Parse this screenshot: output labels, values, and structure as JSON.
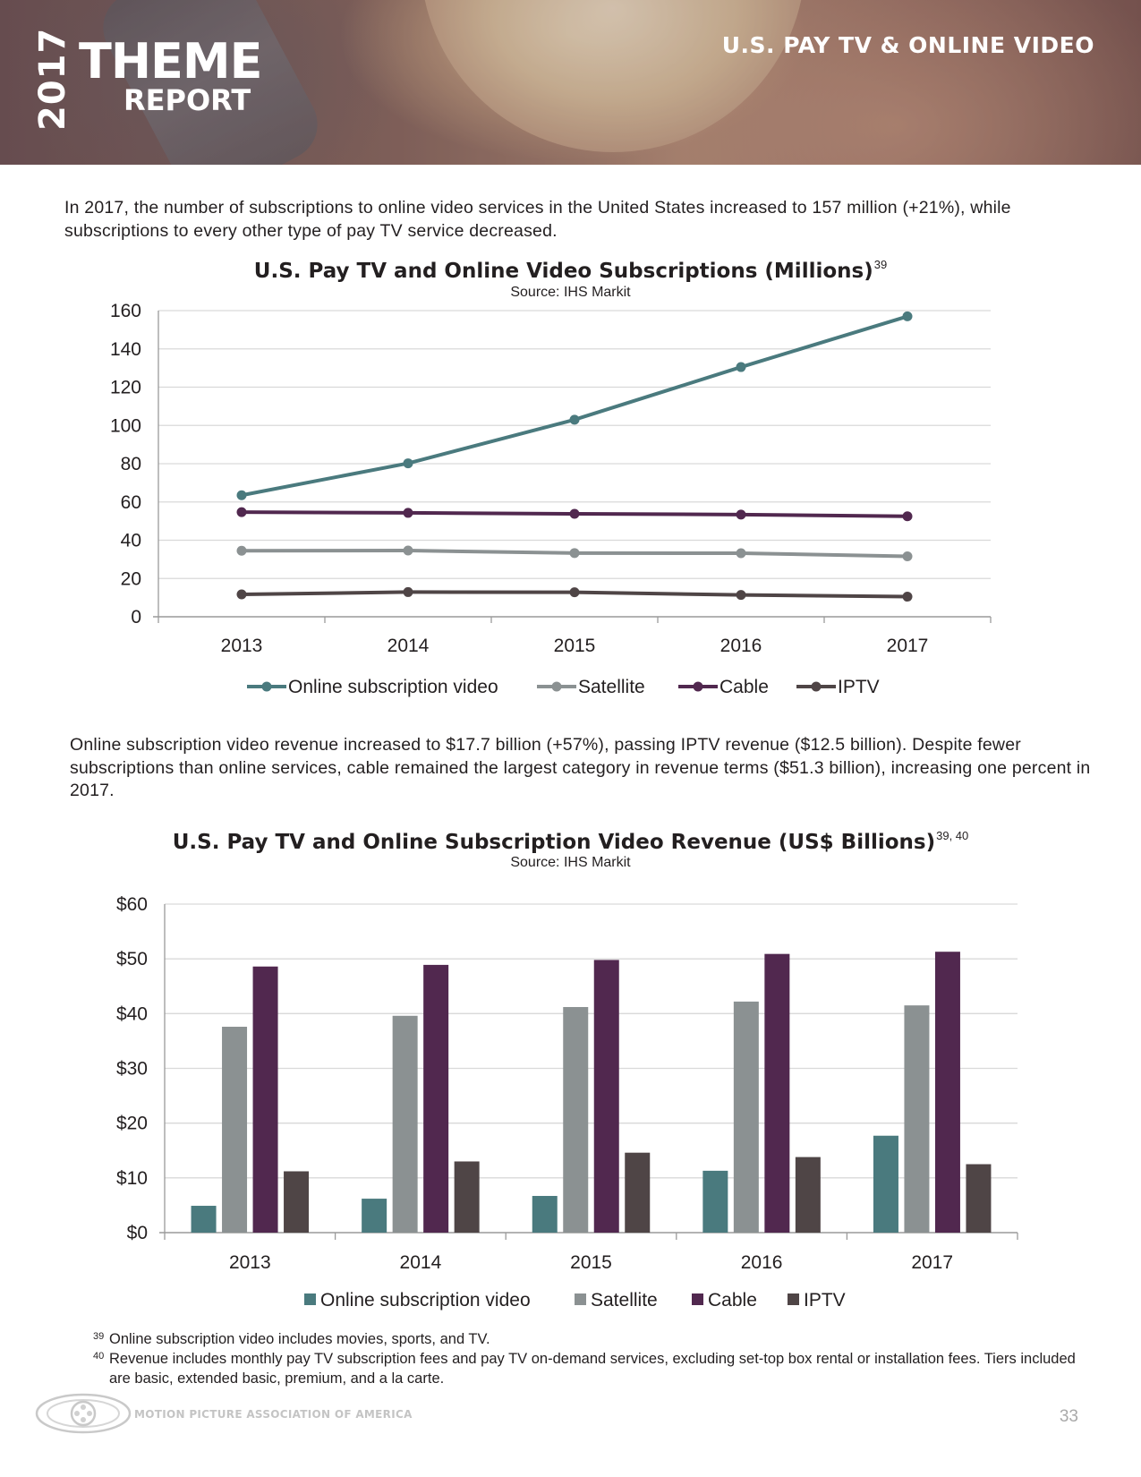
{
  "header": {
    "year": "2017",
    "theme": "THEME",
    "report": "REPORT",
    "section_title": "U.S. PAY TV & ONLINE VIDEO"
  },
  "intro_text": "In 2017, the number of subscriptions to online video services in the United States increased to 157 million (+21%), while subscriptions to every other type of pay TV service decreased.",
  "revenue_text": "Online subscription video revenue increased to $17.7 billion (+57%), passing IPTV revenue ($12.5 billion). Despite fewer subscriptions than online services, cable remained the largest category in revenue terms ($51.3 billion), increasing one percent in 2017.",
  "colors": {
    "online": "#4a7a7e",
    "satellite": "#8b9192",
    "cable": "#51284f",
    "iptv": "#4f4546",
    "grid": "#d9d9d9",
    "axis": "#9a9a9a"
  },
  "chart_data": [
    {
      "type": "line",
      "title": "U.S. Pay TV and Online Video Subscriptions (Millions)",
      "title_ref": "39",
      "source": "Source: IHS Markit",
      "categories": [
        "2013",
        "2014",
        "2015",
        "2016",
        "2017"
      ],
      "ylim": [
        0,
        160
      ],
      "yticks": [
        0,
        20,
        40,
        60,
        80,
        100,
        120,
        140,
        160
      ],
      "ytick_labels": [
        "0",
        "20",
        "40",
        "60",
        "80",
        "100",
        "120",
        "140",
        "160"
      ],
      "xlabel": "",
      "ylabel": "",
      "legend_position": "bottom",
      "series": [
        {
          "name": "Online subscription video",
          "color_key": "online",
          "values": [
            63.5,
            80.2,
            103,
            130.5,
            157
          ]
        },
        {
          "name": "Satellite",
          "color_key": "satellite",
          "values": [
            34.5,
            34.6,
            33.3,
            33.2,
            31.6
          ]
        },
        {
          "name": "Cable",
          "color_key": "cable",
          "values": [
            54.7,
            54.3,
            53.8,
            53.4,
            52.5
          ]
        },
        {
          "name": "IPTV",
          "color_key": "iptv",
          "values": [
            11.7,
            12.9,
            12.8,
            11.4,
            10.5
          ]
        }
      ]
    },
    {
      "type": "bar",
      "title": "U.S. Pay TV and Online Subscription Video Revenue (US$ Billions)",
      "title_ref": "39, 40",
      "source": "Source: IHS Markit",
      "categories": [
        "2013",
        "2014",
        "2015",
        "2016",
        "2017"
      ],
      "ylim": [
        0,
        60
      ],
      "yticks": [
        0,
        10,
        20,
        30,
        40,
        50,
        60
      ],
      "ytick_labels": [
        "$0",
        "$10",
        "$20",
        "$30",
        "$40",
        "$50",
        "$60"
      ],
      "xlabel": "",
      "ylabel": "",
      "legend_position": "bottom",
      "series": [
        {
          "name": "Online subscription video",
          "color_key": "online",
          "values": [
            4.9,
            6.2,
            6.7,
            11.3,
            17.7
          ]
        },
        {
          "name": "Satellite",
          "color_key": "satellite",
          "values": [
            37.6,
            39.6,
            41.2,
            42.2,
            41.5
          ]
        },
        {
          "name": "Cable",
          "color_key": "cable",
          "values": [
            48.6,
            48.9,
            49.8,
            50.9,
            51.3
          ]
        },
        {
          "name": "IPTV",
          "color_key": "iptv",
          "values": [
            11.2,
            13.0,
            14.6,
            13.8,
            12.5
          ]
        }
      ]
    }
  ],
  "footnotes": [
    {
      "num": "39",
      "text": "Online subscription video includes movies, sports, and TV."
    },
    {
      "num": "40",
      "text": "Revenue includes monthly pay TV subscription fees and pay TV on-demand services, excluding set-top box rental or installation fees. Tiers included are basic, extended basic, premium, and a la carte."
    }
  ],
  "footer": {
    "organization": "MOTION PICTURE ASSOCIATION OF AMERICA",
    "page_number": "33"
  }
}
